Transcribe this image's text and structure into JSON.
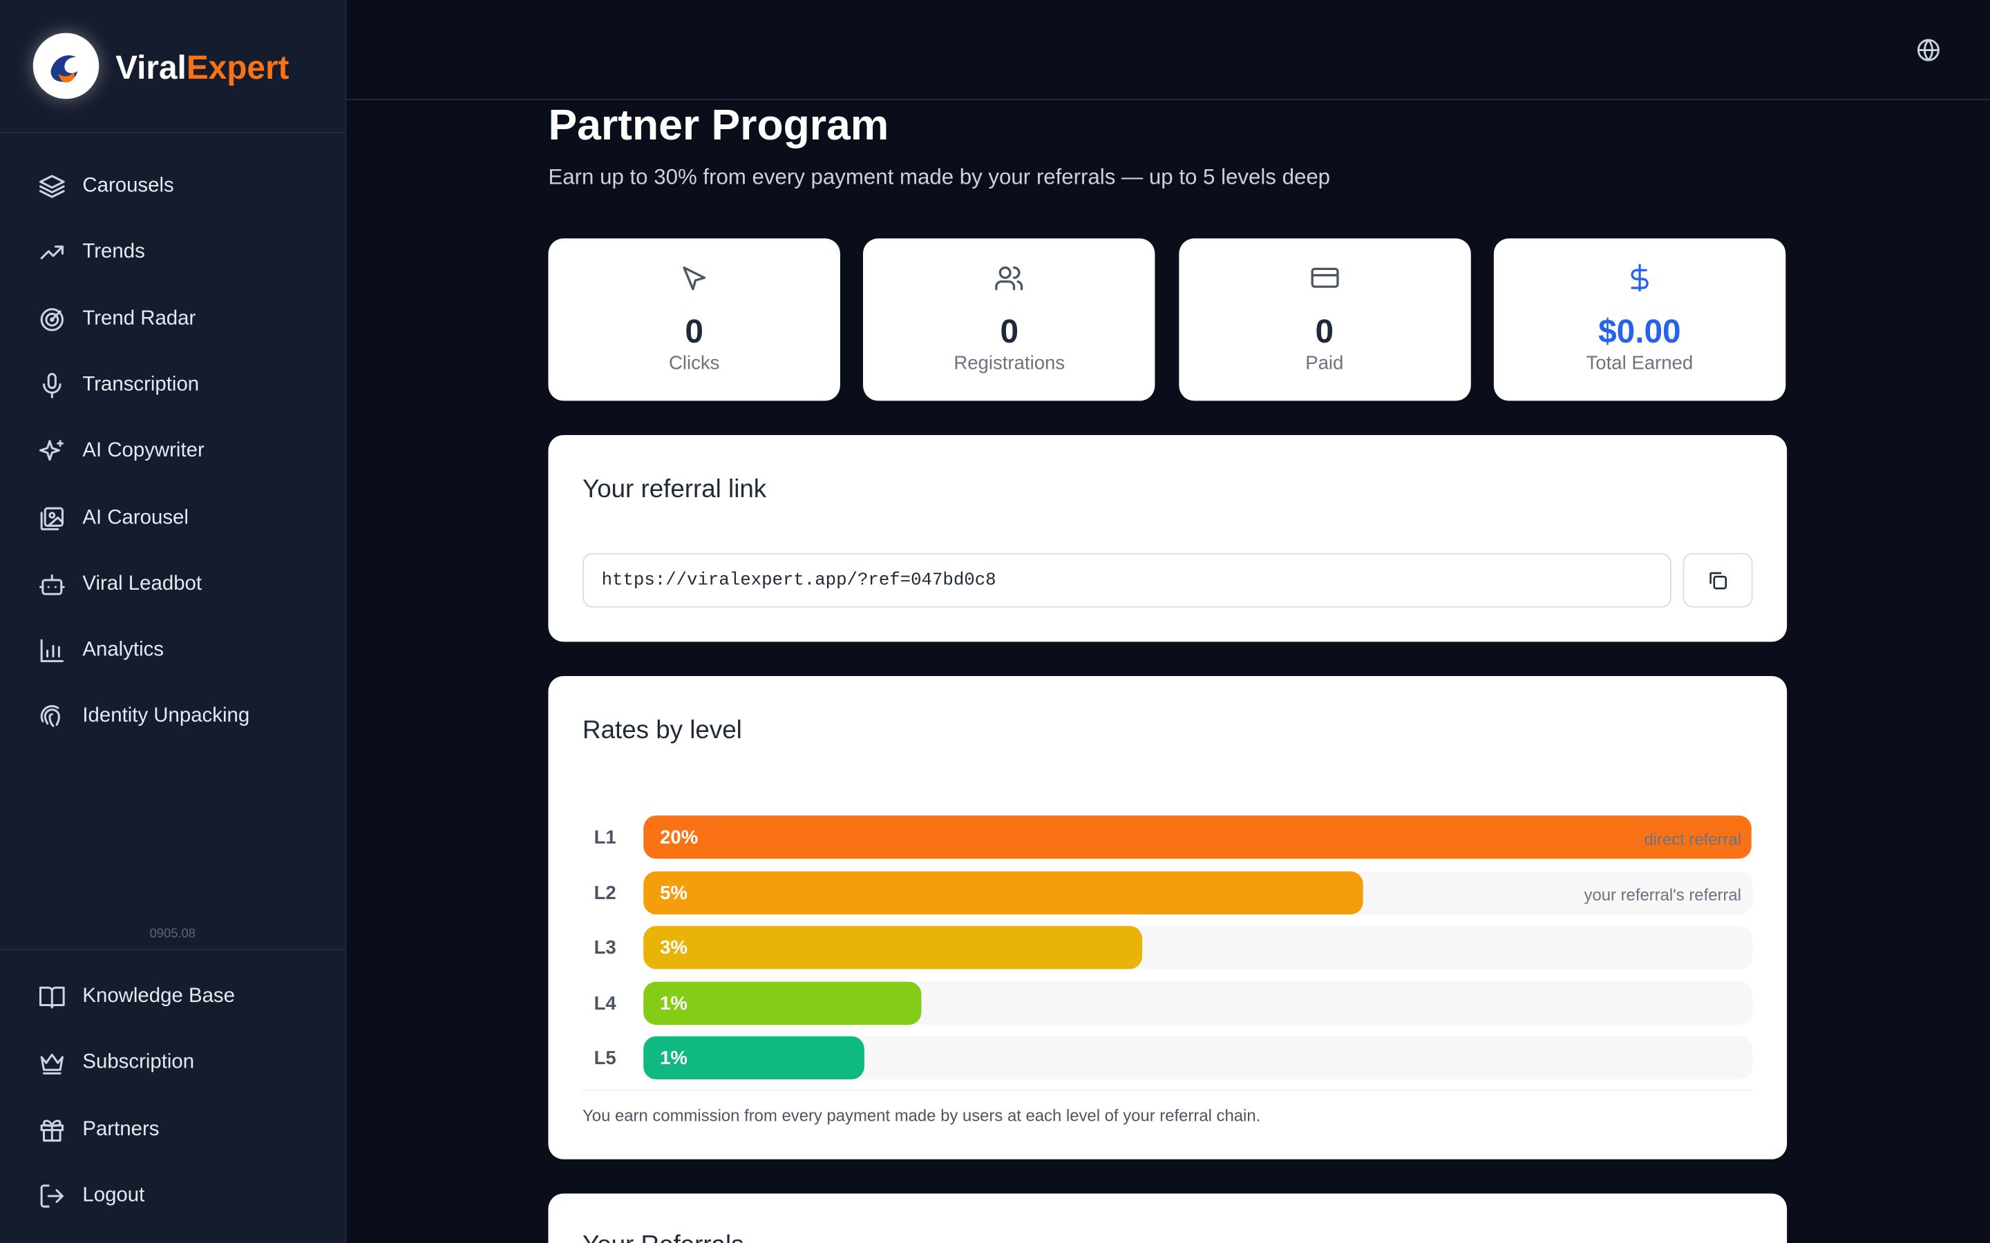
{
  "sidebar": {
    "brand": {
      "first": "Viral",
      "second": "Expert"
    },
    "nav": [
      "Carousels",
      "Trends",
      "Trend Radar",
      "Transcription",
      "AI Copywriter",
      "AI Carousel",
      "Viral Leadbot",
      "Analytics",
      "Identity Unpacking"
    ],
    "version": "0905.08",
    "bottom_nav": [
      "Knowledge Base",
      "Subscription",
      "Partners",
      "Logout"
    ]
  },
  "header": {
    "title": "Partner Program",
    "subtitle": "Earn up to 30% from every payment made by your referrals — up to 5 levels deep"
  },
  "stats": [
    {
      "value": 0,
      "label": "Clicks"
    },
    {
      "value": 0,
      "label": "Registrations"
    },
    {
      "value": 0,
      "label": "Paid"
    },
    {
      "value": "$0.00",
      "label": "Total Earned"
    }
  ],
  "referral_link": {
    "title": "Your referral link",
    "url": "https://viralexpert.app/?ref=047bd0c8"
  },
  "rates": {
    "title": "Rates by level",
    "levels": [
      {
        "level": "L1",
        "rate": "20%",
        "note": "direct referral"
      },
      {
        "level": "L2",
        "rate": "5%",
        "note": "your referral's referral"
      },
      {
        "level": "L3",
        "rate": "3%"
      },
      {
        "level": "L4",
        "rate": "1%"
      },
      {
        "level": "L5",
        "rate": "1%"
      }
    ],
    "footnote": "You earn commission from every payment made by users at each level of your referral chain."
  },
  "referrals": {
    "title": "Your Referrals"
  }
}
